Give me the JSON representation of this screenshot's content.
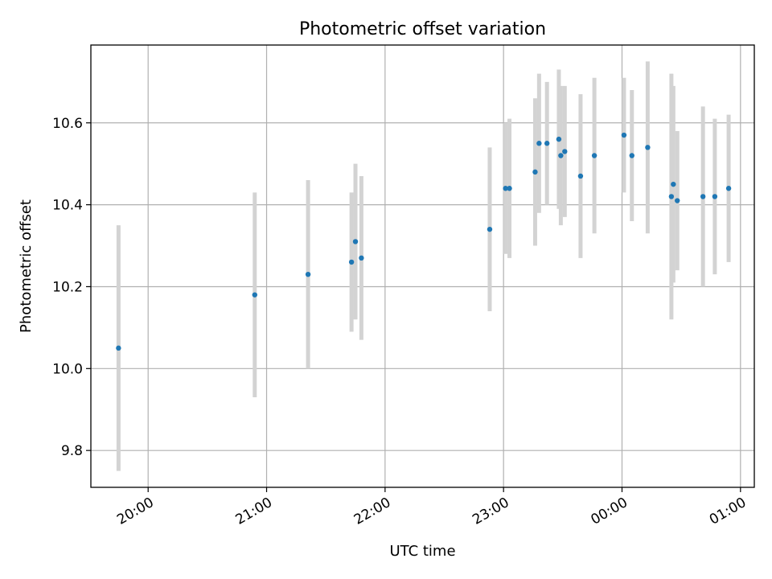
{
  "chart_data": {
    "type": "scatter",
    "title": "Photometric offset variation",
    "xlabel": "UTC time",
    "ylabel": "Photometric offset",
    "x_unit": "UTC clock time (HH:MM:SS)",
    "grid": true,
    "xlim": [
      "19:31:00",
      "25:07:00"
    ],
    "ylim": [
      9.71,
      10.79
    ],
    "x_ticks": [
      "20:00",
      "21:00",
      "22:00",
      "23:00",
      "00:00",
      "01:00"
    ],
    "y_ticks": [
      "9.8",
      "10.0",
      "10.2",
      "10.4",
      "10.6"
    ],
    "x_tick_values": [
      "20:00:00",
      "21:00:00",
      "22:00:00",
      "23:00:00",
      "24:00:00",
      "25:00:00"
    ],
    "y_tick_values": [
      9.8,
      10.0,
      10.2,
      10.4,
      10.6
    ],
    "marker_color": "#1f77b4",
    "errorbar_color": "#d3d3d3",
    "points": [
      {
        "x": "19:45:00",
        "y": 10.05,
        "yerr": 0.3
      },
      {
        "x": "20:54:00",
        "y": 10.18,
        "yerr": 0.25
      },
      {
        "x": "21:21:00",
        "y": 10.23,
        "yerr": 0.23
      },
      {
        "x": "21:43:00",
        "y": 10.26,
        "yerr": 0.17
      },
      {
        "x": "21:45:00",
        "y": 10.31,
        "yerr": 0.19
      },
      {
        "x": "21:48:00",
        "y": 10.27,
        "yerr": 0.2
      },
      {
        "x": "22:53:00",
        "y": 10.34,
        "yerr": 0.2
      },
      {
        "x": "23:01:00",
        "y": 10.44,
        "yerr": 0.16
      },
      {
        "x": "23:03:00",
        "y": 10.44,
        "yerr": 0.17
      },
      {
        "x": "23:16:00",
        "y": 10.48,
        "yerr": 0.18
      },
      {
        "x": "23:18:00",
        "y": 10.55,
        "yerr": 0.17
      },
      {
        "x": "23:22:00",
        "y": 10.55,
        "yerr": 0.15
      },
      {
        "x": "23:28:00",
        "y": 10.56,
        "yerr": 0.17
      },
      {
        "x": "23:29:00",
        "y": 10.52,
        "yerr": 0.17
      },
      {
        "x": "23:31:00",
        "y": 10.53,
        "yerr": 0.16
      },
      {
        "x": "23:39:00",
        "y": 10.47,
        "yerr": 0.2
      },
      {
        "x": "23:46:00",
        "y": 10.52,
        "yerr": 0.19
      },
      {
        "x": "24:01:00",
        "y": 10.57,
        "yerr": 0.14
      },
      {
        "x": "24:05:00",
        "y": 10.52,
        "yerr": 0.16
      },
      {
        "x": "24:13:00",
        "y": 10.54,
        "yerr": 0.21
      },
      {
        "x": "24:25:00",
        "y": 10.42,
        "yerr": 0.3
      },
      {
        "x": "24:26:00",
        "y": 10.45,
        "yerr": 0.24
      },
      {
        "x": "24:28:00",
        "y": 10.41,
        "yerr": 0.17
      },
      {
        "x": "24:41:00",
        "y": 10.42,
        "yerr": 0.22
      },
      {
        "x": "24:47:00",
        "y": 10.42,
        "yerr": 0.19
      },
      {
        "x": "24:54:00",
        "y": 10.44,
        "yerr": 0.18
      }
    ]
  }
}
